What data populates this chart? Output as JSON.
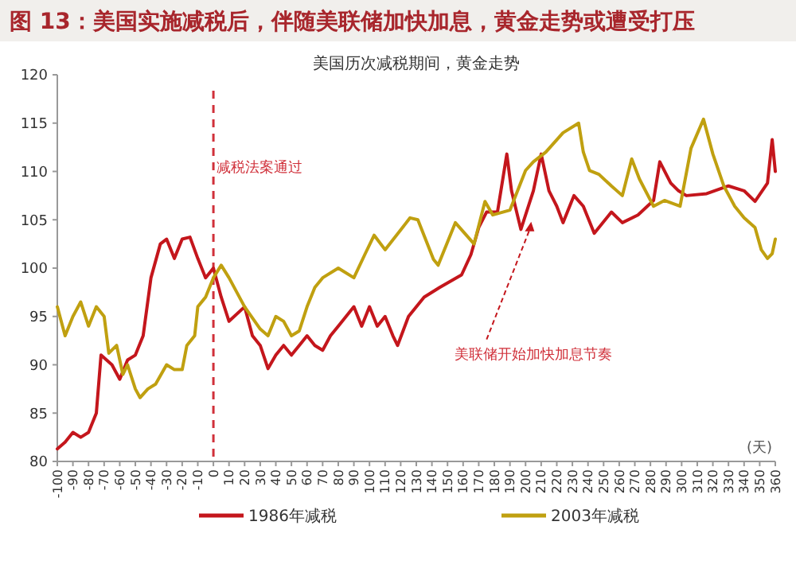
{
  "chart_data": {
    "type": "line",
    "title": "图 13：美国实施减税后，伴随美联储加快加息，黄金走势或遭受打压",
    "subtitle": "美国历次减税期间，黄金走势",
    "xlabel": "(天)",
    "xlim": [
      -100,
      360
    ],
    "xticks": [
      -100,
      -90,
      -80,
      -70,
      -60,
      -50,
      -40,
      -30,
      -20,
      -10,
      0,
      10,
      20,
      30,
      40,
      50,
      60,
      70,
      80,
      90,
      100,
      110,
      120,
      130,
      140,
      150,
      160,
      170,
      180,
      190,
      200,
      210,
      220,
      230,
      240,
      250,
      260,
      270,
      280,
      290,
      300,
      310,
      320,
      330,
      340,
      350,
      360
    ],
    "ylim": [
      80,
      120
    ],
    "yticks": [
      80,
      85,
      90,
      95,
      100,
      105,
      110,
      115,
      120
    ],
    "grid": false,
    "legend": "bottom",
    "line_style": "solid",
    "marker": "none",
    "ref_lines": [
      {
        "axis": "x",
        "value": 0,
        "label": "减税法案通过",
        "color": "#d0303a",
        "line_style": "dashed"
      }
    ],
    "annotations": [
      "美联储开始加快加息节奏"
    ],
    "series": [
      {
        "name": "1986年减税",
        "color": "#c4161c",
        "x": [
          -100,
          -95,
          -90,
          -85,
          -80,
          -75,
          -72,
          -65,
          -60,
          -55,
          -50,
          -45,
          -40,
          -34,
          -30,
          -25,
          -20,
          -15,
          -10,
          -5,
          0,
          5,
          10,
          20,
          25,
          30,
          35,
          40,
          45,
          50,
          55,
          60,
          65,
          70,
          75,
          80,
          90,
          95,
          100,
          105,
          110,
          115,
          118,
          125,
          135,
          145,
          159,
          165,
          170,
          175,
          182,
          188,
          191,
          197,
          205,
          210,
          215,
          220,
          224,
          231,
          237,
          244,
          255,
          262,
          272,
          282,
          286,
          293,
          298,
          303,
          316,
          330,
          340,
          347,
          355,
          358,
          360
        ],
        "values": [
          81.3,
          82,
          83,
          82.5,
          83,
          85,
          91,
          90,
          88.5,
          90.5,
          91,
          93,
          99,
          102.5,
          103,
          101,
          103,
          103.2,
          101,
          99,
          100,
          97,
          94.5,
          96,
          93,
          92,
          89.6,
          91,
          92,
          91,
          92,
          93,
          92,
          91.5,
          93,
          94,
          96,
          94,
          96,
          94,
          95,
          93,
          92,
          95,
          97,
          98,
          99.3,
          101.4,
          104.2,
          105.8,
          105.8,
          111.8,
          108,
          104,
          108,
          111.8,
          108,
          106.4,
          104.7,
          107.5,
          106.4,
          103.6,
          105.8,
          104.7,
          105.5,
          107,
          111,
          108.8,
          108,
          107.5,
          107.7,
          108.5,
          108,
          106.9,
          108.8,
          113.3,
          110
        ]
      },
      {
        "name": "2003年减税",
        "color": "#c0a010",
        "x": [
          -100,
          -95,
          -90,
          -85,
          -80,
          -75,
          -70,
          -67,
          -62,
          -58,
          -55,
          -50,
          -47,
          -42,
          -37,
          -30,
          -25,
          -20,
          -17,
          -12,
          -10,
          -5,
          0,
          5,
          10,
          20,
          30,
          35,
          40,
          45,
          50,
          55,
          60,
          65,
          70,
          80,
          90,
          97,
          103,
          110,
          126,
          131,
          141,
          144,
          155,
          167,
          174,
          179,
          190,
          200,
          205,
          213,
          224,
          234,
          237,
          241,
          247,
          255,
          262,
          268,
          273,
          282,
          289,
          299,
          306,
          314,
          320,
          327,
          334,
          340,
          347,
          351,
          355,
          358,
          360
        ],
        "values": [
          96,
          93,
          95,
          96.5,
          94,
          96,
          95,
          91.2,
          92,
          89,
          90,
          87.5,
          86.6,
          87.5,
          88,
          90,
          89.5,
          89.5,
          92,
          93,
          96,
          97,
          99,
          100.3,
          99,
          96,
          93.7,
          93,
          95,
          94.5,
          93,
          93.5,
          96,
          98,
          99,
          100,
          99,
          101.4,
          103.4,
          101.9,
          105.2,
          105,
          100.9,
          100.3,
          104.7,
          102.5,
          106.9,
          105.5,
          106,
          110.1,
          111,
          112,
          114,
          115,
          112,
          110.1,
          109.7,
          108.5,
          107.5,
          111.3,
          109.2,
          106.4,
          107,
          106.4,
          112.4,
          115.4,
          111.8,
          108.5,
          106.4,
          105.2,
          104.2,
          101.9,
          101,
          101.5,
          103
        ]
      }
    ]
  }
}
